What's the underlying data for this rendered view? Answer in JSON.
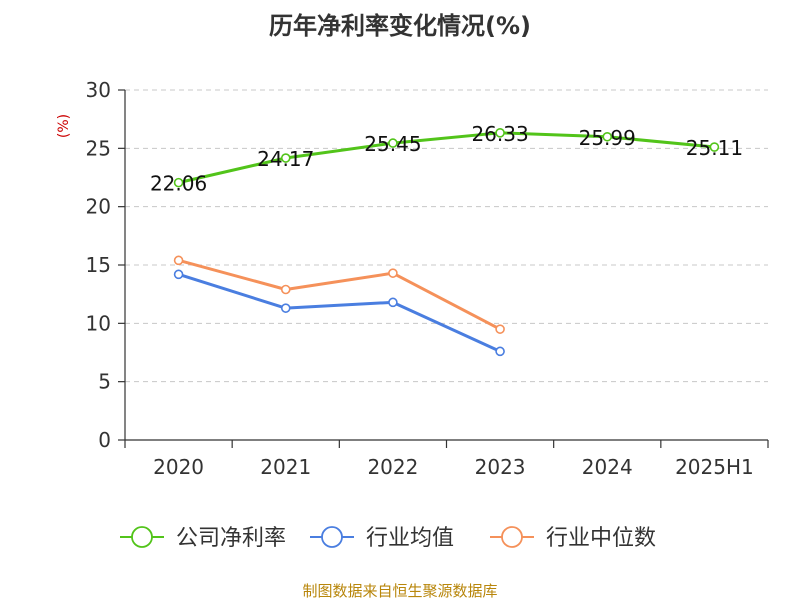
{
  "chart_data": {
    "type": "line",
    "title": "历年净利率变化情况(%)",
    "ylabel": "(%)",
    "xlabel": "",
    "categories": [
      "2020",
      "2021",
      "2022",
      "2023",
      "2024",
      "2025H1"
    ],
    "ylim": [
      0,
      30
    ],
    "yticks": [
      0,
      5,
      10,
      15,
      20,
      25,
      30
    ],
    "grid": true,
    "legend_position": "bottom",
    "series": [
      {
        "name": "公司净利率",
        "color": "#52c41a",
        "values": [
          22.06,
          24.17,
          25.45,
          26.33,
          25.99,
          25.11
        ],
        "labels": [
          "22.06",
          "24.17",
          "25.45",
          "26.33",
          "25.99",
          "25.11"
        ]
      },
      {
        "name": "行业均值",
        "color": "#4a7ee0",
        "values": [
          14.2,
          11.3,
          11.8,
          7.6,
          null,
          null
        ]
      },
      {
        "name": "行业中位数",
        "color": "#f5915a",
        "values": [
          15.4,
          12.9,
          14.3,
          9.5,
          null,
          null
        ]
      }
    ]
  },
  "source_text": "制图数据来自恒生聚源数据库"
}
